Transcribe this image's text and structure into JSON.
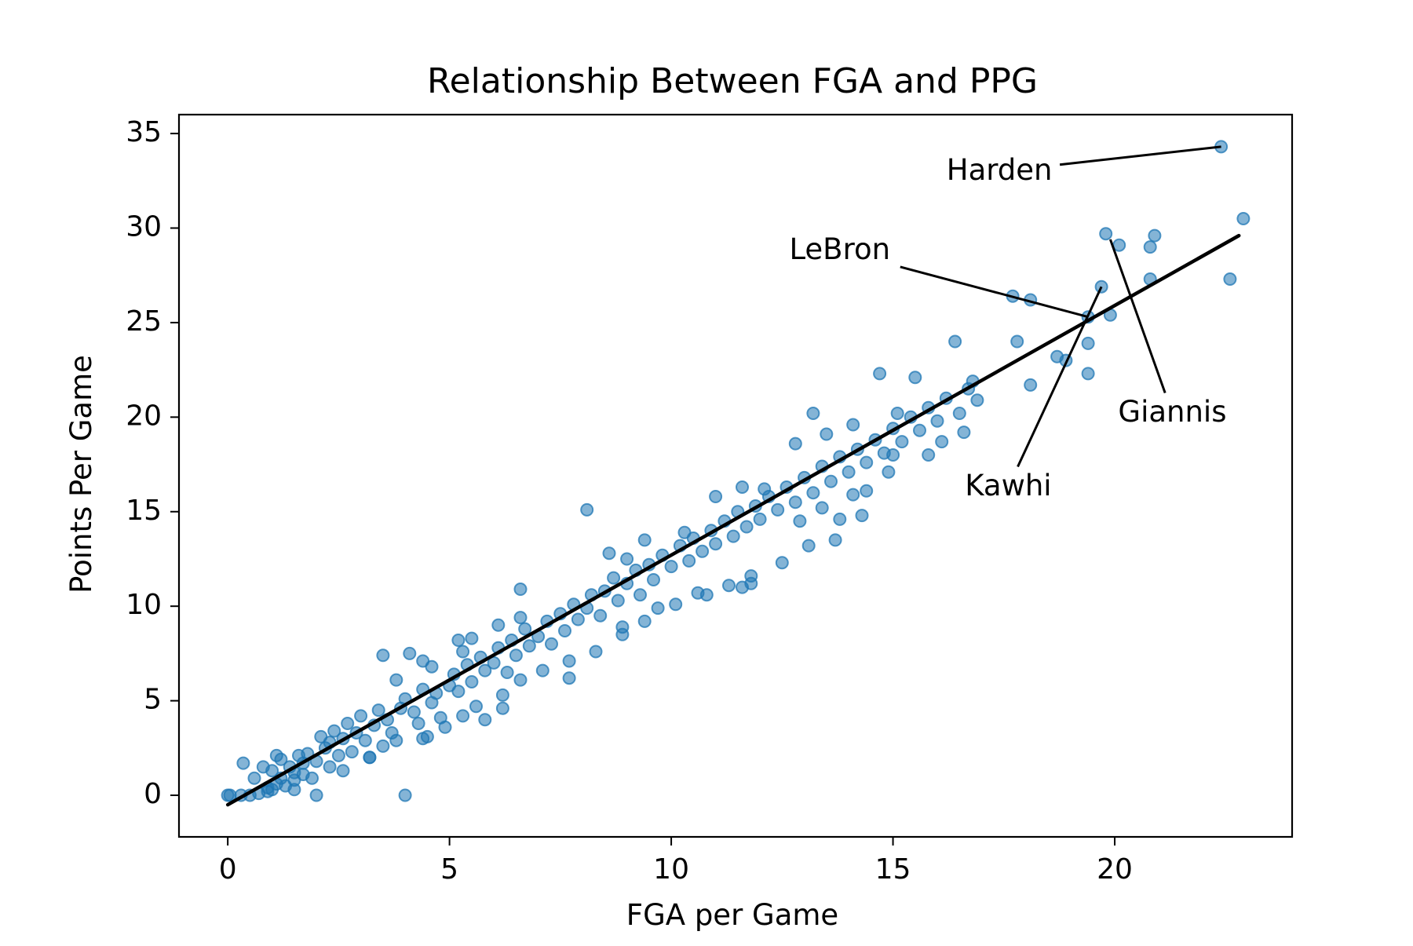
{
  "chart_data": {
    "type": "scatter",
    "title": "Relationship Between FGA and PPG",
    "xlabel": "FGA per Game",
    "ylabel": "Points Per Game",
    "xlim": [
      -1.1,
      24
    ],
    "ylim": [
      -2.2,
      36
    ],
    "x_ticks": [
      0,
      5,
      10,
      15,
      20
    ],
    "y_ticks": [
      0,
      5,
      10,
      15,
      20,
      25,
      30,
      35
    ],
    "grid": false,
    "legend": false,
    "colors": {
      "points": "#1f77b4",
      "fit_line": "#000000"
    },
    "fit_line": {
      "x": [
        0,
        22.8
      ],
      "y": [
        -0.5,
        29.6
      ]
    },
    "annotations": [
      {
        "text": "Harden",
        "point": [
          22.4,
          34.3
        ],
        "text_at": [
          17.4,
          33.0
        ]
      },
      {
        "text": "LeBron",
        "point": [
          19.4,
          25.3
        ],
        "text_at": [
          13.8,
          28.8
        ]
      },
      {
        "text": "Giannis",
        "point": [
          19.9,
          29.4
        ],
        "text_at": [
          21.3,
          20.2
        ]
      },
      {
        "text": "Kawhi",
        "point": [
          19.7,
          26.9
        ],
        "text_at": [
          17.6,
          16.3
        ]
      }
    ],
    "points": [
      [
        0,
        0
      ],
      [
        0.05,
        0
      ],
      [
        0.3,
        0
      ],
      [
        0.5,
        0
      ],
      [
        0.7,
        0.1
      ],
      [
        0.9,
        0.2
      ],
      [
        1.0,
        0.3
      ],
      [
        1.1,
        0.6
      ],
      [
        1.3,
        0.5
      ],
      [
        1.5,
        0.8
      ],
      [
        1.7,
        1.1
      ],
      [
        1.9,
        0.9
      ],
      [
        2.0,
        0
      ],
      [
        0.35,
        1.7
      ],
      [
        0.8,
        1.5
      ],
      [
        1.0,
        1.3
      ],
      [
        1.2,
        1.9
      ],
      [
        1.4,
        1.5
      ],
      [
        1.6,
        2.1
      ],
      [
        1.8,
        2.2
      ],
      [
        2.0,
        1.8
      ],
      [
        2.2,
        2.5
      ],
      [
        2.1,
        3.1
      ],
      [
        2.3,
        2.8
      ],
      [
        2.4,
        3.4
      ],
      [
        2.6,
        3.0
      ],
      [
        2.7,
        3.8
      ],
      [
        2.9,
        3.3
      ],
      [
        3.0,
        4.2
      ],
      [
        3.1,
        2.9
      ],
      [
        3.3,
        3.7
      ],
      [
        3.4,
        4.5
      ],
      [
        3.6,
        4.0
      ],
      [
        3.7,
        3.3
      ],
      [
        3.9,
        4.6
      ],
      [
        4.0,
        5.1
      ],
      [
        4.2,
        4.4
      ],
      [
        4.3,
        3.8
      ],
      [
        4.4,
        5.6
      ],
      [
        4.6,
        4.9
      ],
      [
        4.7,
        5.4
      ],
      [
        4.8,
        4.1
      ],
      [
        5.0,
        5.8
      ],
      [
        5.1,
        6.4
      ],
      [
        5.2,
        5.5
      ],
      [
        5.4,
        6.9
      ],
      [
        5.5,
        6.0
      ],
      [
        5.7,
        7.3
      ],
      [
        5.8,
        6.6
      ],
      [
        6.0,
        7.0
      ],
      [
        6.1,
        7.8
      ],
      [
        6.3,
        6.5
      ],
      [
        6.4,
        8.2
      ],
      [
        6.5,
        7.4
      ],
      [
        6.7,
        8.8
      ],
      [
        6.8,
        7.9
      ],
      [
        7.0,
        8.4
      ],
      [
        7.2,
        9.2
      ],
      [
        7.3,
        8.0
      ],
      [
        7.5,
        9.6
      ],
      [
        7.6,
        8.7
      ],
      [
        7.8,
        10.1
      ],
      [
        7.9,
        9.3
      ],
      [
        8.1,
        9.9
      ],
      [
        8.2,
        10.6
      ],
      [
        8.4,
        9.5
      ],
      [
        8.5,
        10.8
      ],
      [
        8.7,
        11.5
      ],
      [
        8.8,
        10.3
      ],
      [
        9.0,
        11.2
      ],
      [
        9.2,
        11.9
      ],
      [
        9.3,
        10.6
      ],
      [
        9.5,
        12.2
      ],
      [
        9.6,
        11.4
      ],
      [
        9.8,
        12.7
      ],
      [
        10.0,
        12.1
      ],
      [
        10.2,
        13.2
      ],
      [
        10.4,
        12.4
      ],
      [
        10.5,
        13.6
      ],
      [
        10.7,
        12.9
      ],
      [
        10.9,
        14.0
      ],
      [
        11.0,
        13.3
      ],
      [
        11.2,
        14.5
      ],
      [
        11.4,
        13.7
      ],
      [
        11.5,
        15.0
      ],
      [
        11.7,
        14.2
      ],
      [
        11.9,
        15.3
      ],
      [
        12.0,
        14.6
      ],
      [
        12.2,
        15.8
      ],
      [
        12.4,
        15.1
      ],
      [
        12.6,
        16.3
      ],
      [
        12.8,
        15.5
      ],
      [
        13.0,
        16.8
      ],
      [
        13.2,
        16.0
      ],
      [
        13.4,
        17.4
      ],
      [
        13.6,
        16.6
      ],
      [
        13.8,
        17.9
      ],
      [
        14.0,
        17.1
      ],
      [
        14.2,
        18.3
      ],
      [
        14.4,
        17.6
      ],
      [
        14.6,
        18.8
      ],
      [
        14.8,
        18.1
      ],
      [
        15.0,
        19.4
      ],
      [
        15.2,
        18.7
      ],
      [
        15.4,
        20.0
      ],
      [
        15.6,
        19.3
      ],
      [
        15.8,
        20.5
      ],
      [
        16.0,
        19.8
      ],
      [
        16.2,
        21.0
      ],
      [
        16.5,
        20.2
      ],
      [
        16.7,
        21.5
      ],
      [
        16.9,
        20.9
      ],
      [
        0.6,
        0.9
      ],
      [
        0.9,
        0.4
      ],
      [
        1.2,
        0.9
      ],
      [
        1.5,
        1.2
      ],
      [
        1.1,
        2.1
      ],
      [
        1.7,
        1.7
      ],
      [
        2.3,
        1.5
      ],
      [
        2.5,
        2.1
      ],
      [
        2.8,
        2.3
      ],
      [
        3.2,
        2.0
      ],
      [
        3.5,
        2.6
      ],
      [
        3.8,
        2.9
      ],
      [
        4.0,
        0
      ],
      [
        4.5,
        3.1
      ],
      [
        4.9,
        3.6
      ],
      [
        5.3,
        4.2
      ],
      [
        5.6,
        4.7
      ],
      [
        6.2,
        5.3
      ],
      [
        6.6,
        6.1
      ],
      [
        7.1,
        6.6
      ],
      [
        7.7,
        7.1
      ],
      [
        8.3,
        7.6
      ],
      [
        8.9,
        8.5
      ],
      [
        9.4,
        9.2
      ],
      [
        10.1,
        10.1
      ],
      [
        10.6,
        10.7
      ],
      [
        11.3,
        11.1
      ],
      [
        11.8,
        11.6
      ],
      [
        12.5,
        12.3
      ],
      [
        13.1,
        13.2
      ],
      [
        13.7,
        13.5
      ],
      [
        14.3,
        14.8
      ],
      [
        3.5,
        7.4
      ],
      [
        4.1,
        7.5
      ],
      [
        4.4,
        7.1
      ],
      [
        5.2,
        8.2
      ],
      [
        5.5,
        8.3
      ],
      [
        6.1,
        9.0
      ],
      [
        6.6,
        9.4
      ],
      [
        6.6,
        10.9
      ],
      [
        8.1,
        15.1
      ],
      [
        8.6,
        12.8
      ],
      [
        9.0,
        12.5
      ],
      [
        9.4,
        13.5
      ],
      [
        10.3,
        13.9
      ],
      [
        11.0,
        15.8
      ],
      [
        11.6,
        16.3
      ],
      [
        12.1,
        16.2
      ],
      [
        12.8,
        18.6
      ],
      [
        13.2,
        20.2
      ],
      [
        13.5,
        19.1
      ],
      [
        14.1,
        19.6
      ],
      [
        14.7,
        22.3
      ],
      [
        15.1,
        20.2
      ],
      [
        15.5,
        22.1
      ],
      [
        16.4,
        24.0
      ],
      [
        16.8,
        21.9
      ],
      [
        17.7,
        26.4
      ],
      [
        18.1,
        26.2
      ],
      [
        17.8,
        24.0
      ],
      [
        18.1,
        21.7
      ],
      [
        18.7,
        23.2
      ],
      [
        18.9,
        23.0
      ],
      [
        19.4,
        23.9
      ],
      [
        19.4,
        22.3
      ],
      [
        19.4,
        25.3
      ],
      [
        19.7,
        26.9
      ],
      [
        19.8,
        29.7
      ],
      [
        20.1,
        29.1
      ],
      [
        19.9,
        25.4
      ],
      [
        20.8,
        29.0
      ],
      [
        20.9,
        29.6
      ],
      [
        20.8,
        27.3
      ],
      [
        22.4,
        34.3
      ],
      [
        22.6,
        27.3
      ],
      [
        22.9,
        30.5
      ],
      [
        13.4,
        15.2
      ],
      [
        14.1,
        15.9
      ],
      [
        14.4,
        16.1
      ],
      [
        15.8,
        18.0
      ],
      [
        15.0,
        18.0
      ],
      [
        12.9,
        14.5
      ],
      [
        11.8,
        11.2
      ],
      [
        7.7,
        6.2
      ],
      [
        8.9,
        8.9
      ],
      [
        6.2,
        4.6
      ],
      [
        5.8,
        4.0
      ],
      [
        4.4,
        3.0
      ],
      [
        3.2,
        2.0
      ],
      [
        2.6,
        1.3
      ],
      [
        1.5,
        0.3
      ],
      [
        3.8,
        6.1
      ],
      [
        4.6,
        6.8
      ],
      [
        5.3,
        7.6
      ],
      [
        9.7,
        9.9
      ],
      [
        10.8,
        10.6
      ],
      [
        11.6,
        11.0
      ],
      [
        13.8,
        14.6
      ],
      [
        14.9,
        17.1
      ],
      [
        16.1,
        18.7
      ],
      [
        16.6,
        19.2
      ]
    ]
  }
}
